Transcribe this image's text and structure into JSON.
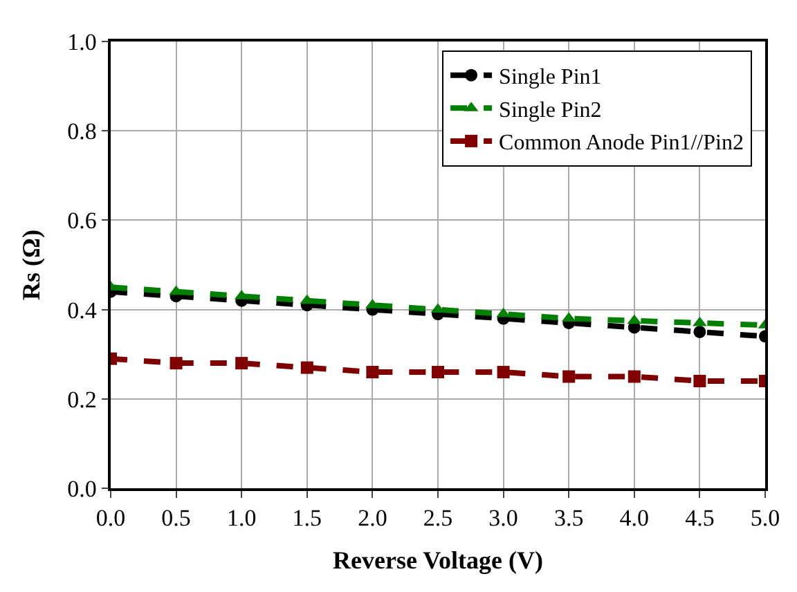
{
  "chart_data": {
    "type": "line",
    "xlabel": "Reverse Voltage (V)",
    "ylabel": "Rs (Ω)",
    "x": [
      0,
      0.5,
      1,
      1.5,
      2,
      2.5,
      3,
      3.5,
      4,
      4.5,
      5
    ],
    "series": [
      {
        "name": "Single Pin1",
        "color": "#000000",
        "marker": "circle",
        "values": [
          0.44,
          0.43,
          0.42,
          0.41,
          0.4,
          0.39,
          0.38,
          0.37,
          0.36,
          0.35,
          0.34
        ]
      },
      {
        "name": "Single Pin2",
        "color": "#008000",
        "marker": "triangle",
        "values": [
          0.45,
          0.44,
          0.43,
          0.42,
          0.41,
          0.4,
          0.39,
          0.38,
          0.375,
          0.37,
          0.365
        ]
      },
      {
        "name": "Common Anode Pin1//Pin2",
        "color": "#800000",
        "marker": "square",
        "values": [
          0.29,
          0.28,
          0.28,
          0.27,
          0.26,
          0.26,
          0.26,
          0.25,
          0.25,
          0.24,
          0.24
        ]
      }
    ],
    "line_style": "dashed",
    "xlim": [
      0,
      5
    ],
    "xticks": [
      {
        "value": 0,
        "label": "0.0"
      },
      0.5,
      {
        "value": 1,
        "label": "1.0"
      },
      1.5,
      {
        "value": 2,
        "label": "2.0"
      },
      2.5,
      {
        "value": 3,
        "label": "3.0"
      },
      3.5,
      {
        "value": 4,
        "label": "4.0"
      },
      4.5,
      {
        "value": 5,
        "label": "5.0"
      }
    ],
    "ylim": [
      0,
      1
    ],
    "yticks": [
      {
        "value": 0,
        "label": "0.0"
      },
      0.2,
      0.4,
      0.6,
      0.8,
      {
        "value": 1,
        "label": "1.0"
      }
    ],
    "grid": true,
    "legend": "top right"
  }
}
